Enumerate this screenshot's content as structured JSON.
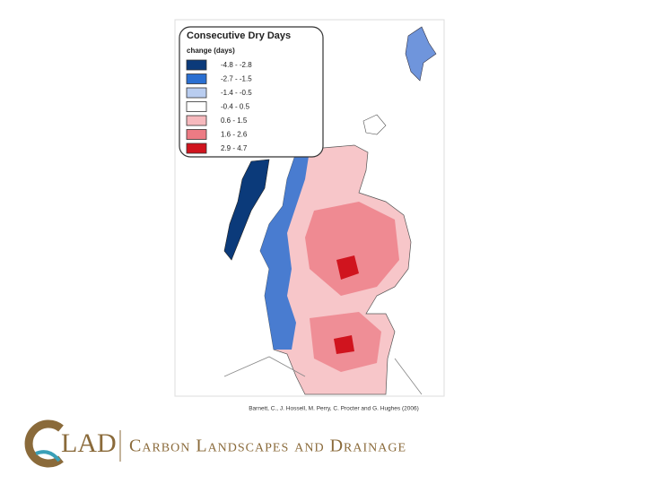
{
  "map": {
    "legend": {
      "title": "Consecutive Dry Days",
      "subtitle": "change (days)",
      "items": [
        {
          "label": "-4.8 - -2.8",
          "color": "#0b3a7a"
        },
        {
          "label": "-2.7 - -1.5",
          "color": "#2a6fd1"
        },
        {
          "label": "-1.4 - -0.5",
          "color": "#b9cdf0"
        },
        {
          "label": "-0.4 - 0.5",
          "color": "#ffffff"
        },
        {
          "label": "0.6 - 1.5",
          "color": "#f6b9bd"
        },
        {
          "label": "1.6 - 2.6",
          "color": "#ec7b84"
        },
        {
          "label": "2.9 - 4.7",
          "color": "#d0141e"
        }
      ]
    },
    "citation": "Barnett, C., J. Hossell, M. Perry, C. Procter and G. Hughes (2006)"
  },
  "logo": {
    "letters": "LAD",
    "name": "Carbon Landscapes and Drainage"
  }
}
